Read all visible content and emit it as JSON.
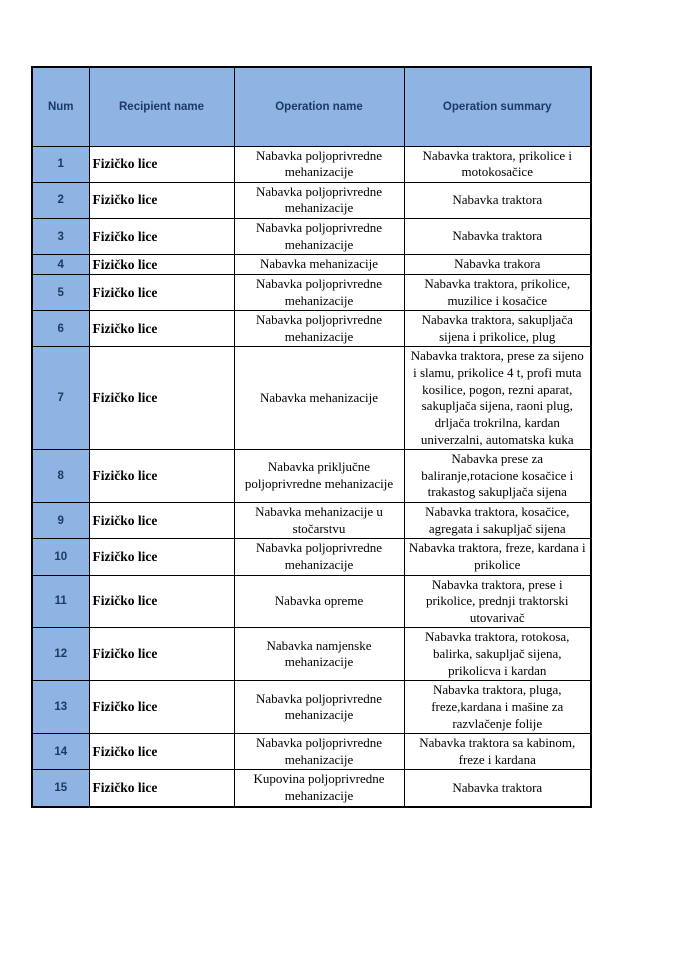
{
  "colors": {
    "header_bg": "#8DB4E2",
    "num_column_bg": "#8DB4E2",
    "border": "#000000",
    "header_text": "#1F3864",
    "body_text": "#000000"
  },
  "table": {
    "columns": [
      {
        "key": "num",
        "label": "Num"
      },
      {
        "key": "recipient",
        "label": "Recipient name"
      },
      {
        "key": "operation_name",
        "label": "Operation name"
      },
      {
        "key": "operation_summary",
        "label": "Operation summary"
      }
    ],
    "rows": [
      {
        "num": "1",
        "recipient": "Fizičko lice",
        "operation_name": "Nabavka poljoprivredne mehanizacije",
        "operation_summary": "Nabavka traktora, prikolice i motokosačice"
      },
      {
        "num": "2",
        "recipient": "Fizičko lice",
        "operation_name": "Nabavka poljoprivredne mehanizacije",
        "operation_summary": "Nabavka traktora"
      },
      {
        "num": "3",
        "recipient": "Fizičko lice",
        "operation_name": "Nabavka poljoprivredne mehanizacije",
        "operation_summary": "Nabavka traktora"
      },
      {
        "num": "4",
        "recipient": "Fizičko lice",
        "operation_name": "Nabavka mehanizacije",
        "operation_summary": "Nabavka trakora"
      },
      {
        "num": "5",
        "recipient": "Fizičko lice",
        "operation_name": "Nabavka poljoprivredne mehanizacije",
        "operation_summary": "Nabavka traktora, prikolice, muzilice i kosačice"
      },
      {
        "num": "6",
        "recipient": "Fizičko lice",
        "operation_name": "Nabavka poljoprivredne mehanizacije",
        "operation_summary": "Nabavka traktora, sakupljača sijena i prikolice, plug"
      },
      {
        "num": "7",
        "recipient": "Fizičko lice",
        "operation_name": "Nabavka mehanizacije",
        "operation_summary": "Nabavka traktora, prese za sijeno i slamu, prikolice 4 t, profi muta kosilice, pogon, rezni aparat, sakupljača sijena, raoni plug, drljača trokrilna, kardan univerzalni, automatska kuka"
      },
      {
        "num": "8",
        "recipient": "Fizičko lice",
        "operation_name": "Nabavka priključne poljoprivredne mehanizacije",
        "operation_summary": "Nabavka prese za baliranje,rotacione kosačice i trakastog sakupljača sijena"
      },
      {
        "num": "9",
        "recipient": "Fizičko lice",
        "operation_name": "Nabavka mehanizacije u stočarstvu",
        "operation_summary": "Nabavka traktora, kosačice, agregata i sakupljač sijena"
      },
      {
        "num": "10",
        "recipient": "Fizičko lice",
        "operation_name": "Nabavka poljoprivredne mehanizacije",
        "operation_summary": "Nabavka traktora, freze, kardana i prikolice"
      },
      {
        "num": "11",
        "recipient": "Fizičko lice",
        "operation_name": "Nabavka opreme",
        "operation_summary": "Nabavka traktora, prese  i prikolice, prednji traktorski utovarivač"
      },
      {
        "num": "12",
        "recipient": "Fizičko lice",
        "operation_name": "Nabavka namjenske mehanizacije",
        "operation_summary": "Nabavka traktora, rotokosa, balirka, sakupljač sijena, prikolicva i kardan"
      },
      {
        "num": "13",
        "recipient": "Fizičko lice",
        "operation_name": "Nabavka poljoprivredne mehanizacije",
        "operation_summary": "Nabavka traktora, pluga, freze,kardana i mašine za razvlačenje folije"
      },
      {
        "num": "14",
        "recipient": "Fizičko lice",
        "operation_name": "Nabavka poljoprivredne mehanizacije",
        "operation_summary": "Nabavka traktora sa kabinom, freze i kardana"
      },
      {
        "num": "15",
        "recipient": "Fizičko lice",
        "operation_name": "Kupovina poljoprivredne mehanizacije",
        "operation_summary": "Nabavka traktora"
      }
    ]
  }
}
